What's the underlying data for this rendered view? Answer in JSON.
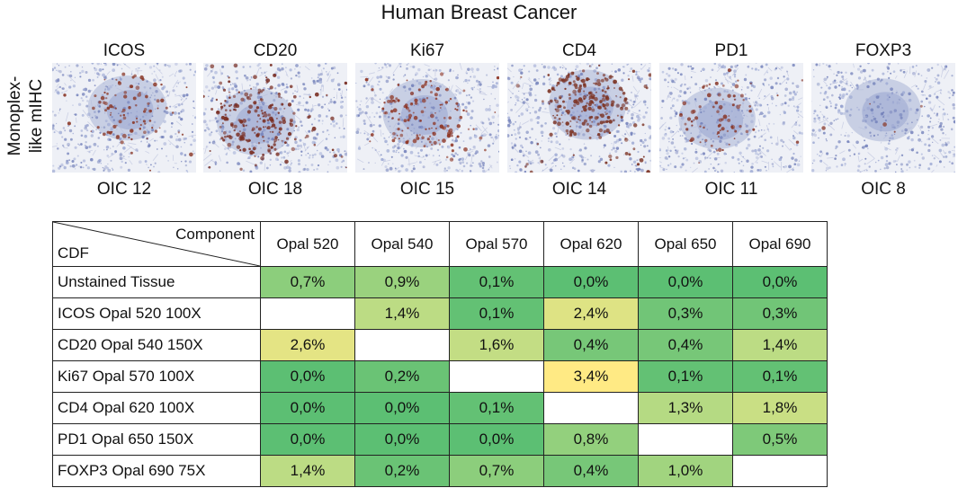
{
  "title": "Human Breast Cancer",
  "row_label": "Monoplex-like mIHC",
  "panels": [
    {
      "marker": "ICOS",
      "oic": "OIC 12",
      "stain": 0.35,
      "stain_color": "#8b3a2a"
    },
    {
      "marker": "CD20",
      "oic": "OIC 18",
      "stain": 0.8,
      "stain_color": "#7a2f24"
    },
    {
      "marker": "Ki67",
      "oic": "OIC 15",
      "stain": 0.5,
      "stain_color": "#8e3524"
    },
    {
      "marker": "CD4",
      "oic": "OIC 14",
      "stain": 0.9,
      "stain_color": "#7d3526"
    },
    {
      "marker": "PD1",
      "oic": "OIC 11",
      "stain": 0.3,
      "stain_color": "#8a3a2d"
    },
    {
      "marker": "FOXP3",
      "oic": "OIC 8",
      "stain": 0.02,
      "stain_color": "#8a3a2d"
    }
  ],
  "table": {
    "corner_top": "Component",
    "corner_bottom": "CDF",
    "columns": [
      "Opal 520",
      "Opal 540",
      "Opal 570",
      "Opal 620",
      "Opal 650",
      "Opal 690"
    ],
    "rows": [
      {
        "label": "Unstained Tissue",
        "cells": [
          "0,7%",
          "0,9%",
          "0,1%",
          "0,0%",
          "0,0%",
          "0,0%"
        ]
      },
      {
        "label": "ICOS Opal 520 100X",
        "cells": [
          "",
          "1,4%",
          "0,1%",
          "2,4%",
          "0,3%",
          "0,3%"
        ]
      },
      {
        "label": "CD20 Opal 540 150X",
        "cells": [
          "2,6%",
          "",
          "1,6%",
          "0,4%",
          "0,4%",
          "1,4%"
        ]
      },
      {
        "label": "Ki67 Opal 570 100X",
        "cells": [
          "0,0%",
          "0,2%",
          "",
          "3,4%",
          "0,1%",
          "0,1%"
        ]
      },
      {
        "label": "CD4 Opal 620 100X",
        "cells": [
          "0,0%",
          "0,0%",
          "0,1%",
          "",
          "1,3%",
          "1,8%"
        ]
      },
      {
        "label": "PD1 Opal 650 150X",
        "cells": [
          "0,0%",
          "0,0%",
          "0,0%",
          "0,8%",
          "",
          "0,5%"
        ]
      },
      {
        "label": "FOXP3 Opal 690 75X",
        "cells": [
          "1,4%",
          "0,2%",
          "0,7%",
          "0,4%",
          "1,0%",
          ""
        ]
      }
    ]
  },
  "heat_colors": {
    "low": "#5cbf73",
    "mid": "#bcdc84",
    "high": "#ffea84"
  }
}
